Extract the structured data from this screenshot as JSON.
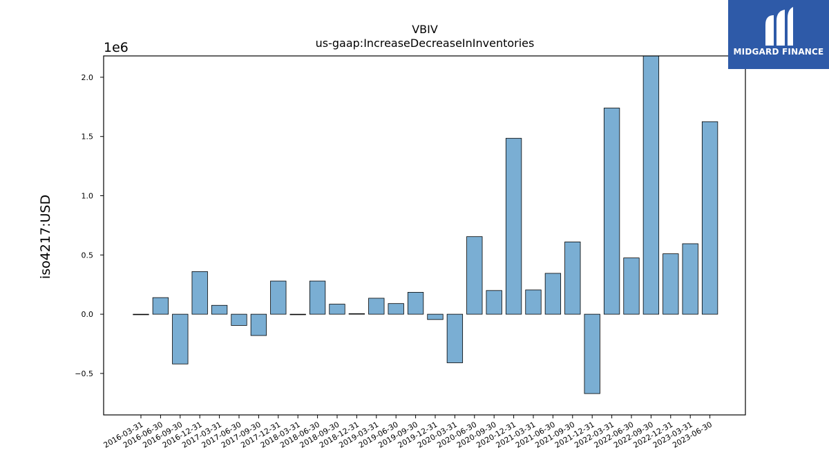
{
  "chart_data": {
    "type": "bar",
    "title": "VBIV",
    "subtitle": "us-gaap:IncreaseDecreaseInInventories",
    "ylabel": "iso4217:USD",
    "xlabel": "",
    "scale_label": "1e6",
    "ylim": [
      -0.85,
      2.18
    ],
    "yticks": [
      -0.5,
      0.0,
      0.5,
      1.0,
      1.5,
      2.0
    ],
    "ytick_labels": [
      "−0.5",
      "0.0",
      "0.5",
      "1.0",
      "1.5",
      "2.0"
    ],
    "categories": [
      "2016-03-31",
      "2016-06-30",
      "2016-09-30",
      "2016-12-31",
      "2017-03-31",
      "2017-06-30",
      "2017-09-30",
      "2017-12-31",
      "2018-03-31",
      "2018-06-30",
      "2018-09-30",
      "2018-12-31",
      "2019-03-31",
      "2019-06-30",
      "2019-09-30",
      "2019-12-31",
      "2020-03-31",
      "2020-06-30",
      "2020-09-30",
      "2020-12-31",
      "2021-03-31",
      "2021-06-30",
      "2021-09-30",
      "2021-12-31",
      "2022-03-31",
      "2022-06-30",
      "2022-09-30",
      "2022-12-31",
      "2023-03-31",
      "2023-06-30"
    ],
    "values": [
      0.0,
      0.14,
      -0.42,
      0.36,
      0.075,
      -0.095,
      -0.18,
      0.28,
      0.0,
      0.28,
      0.085,
      0.005,
      0.135,
      0.09,
      0.185,
      -0.045,
      -0.41,
      0.655,
      0.2,
      1.485,
      0.205,
      0.345,
      0.61,
      -0.67,
      1.74,
      0.475,
      2.18,
      0.51,
      0.595,
      1.625
    ],
    "bar_color": "#7aaed3",
    "edge_color": "#000000",
    "grid": false
  },
  "watermark": {
    "brand": "MIDGARD FINANCE",
    "background": "#2e5aa8"
  }
}
